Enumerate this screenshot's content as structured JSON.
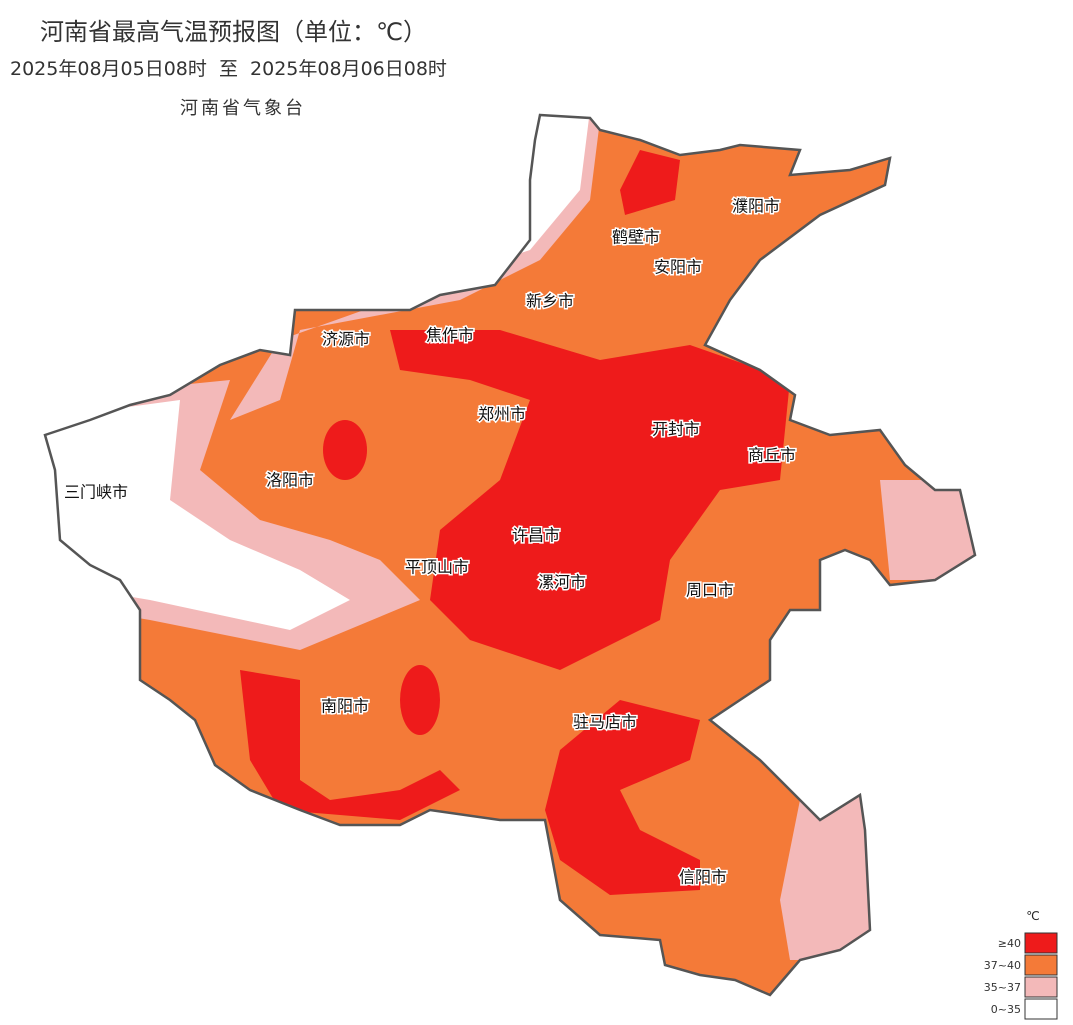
{
  "header": {
    "title": "河南省最高气温预报图（单位：℃）",
    "period": "2025年08月05日08时  至  2025年08月06日08时",
    "issuer": "河南省气象台"
  },
  "cities": [
    "濮阳市",
    "鹤壁市",
    "安阳市",
    "新乡市",
    "济源市",
    "焦作市",
    "郑州市",
    "开封市",
    "商丘市",
    "三门峡市",
    "洛阳市",
    "许昌市",
    "平顶山市",
    "漯河市",
    "周口市",
    "南阳市",
    "驻马店市",
    "信阳市"
  ],
  "legend": {
    "unit": "℃",
    "items": [
      {
        "label": "≥40",
        "color": "#ee1b1b"
      },
      {
        "label": "37~40",
        "color": "#f47a38"
      },
      {
        "label": "35~37",
        "color": "#f3b9b9"
      },
      {
        "label": "0~35",
        "color": "#ffffff"
      }
    ]
  }
}
